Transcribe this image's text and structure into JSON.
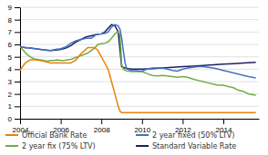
{
  "chart_data": {
    "type": "line",
    "xlim": [
      2004.0,
      2015.75
    ],
    "ylim": [
      0,
      9
    ],
    "xticks": [
      2004,
      2006,
      2008,
      2010,
      2012,
      2014
    ],
    "yticks": [
      0,
      1,
      2,
      3,
      4,
      5,
      6,
      7,
      8,
      9
    ],
    "grid": true,
    "legend": "bottom",
    "series": [
      {
        "name": "Official Bank Rate",
        "color": "#e8820c",
        "x": [
          2004.0,
          2004.25,
          2004.5,
          2004.75,
          2005.0,
          2005.25,
          2005.5,
          2005.75,
          2006.0,
          2006.25,
          2006.5,
          2006.75,
          2007.0,
          2007.17,
          2007.33,
          2007.5,
          2007.67,
          2007.83,
          2008.0,
          2008.17,
          2008.33,
          2008.5,
          2008.67,
          2008.83,
          2008.92,
          2009.0,
          2009.08,
          2009.17,
          2009.33,
          2009.5,
          2010.0,
          2011.0,
          2012.0,
          2013.0,
          2014.0,
          2015.0,
          2015.6
        ],
        "values": [
          3.9,
          4.5,
          4.75,
          4.75,
          4.7,
          4.6,
          4.5,
          4.5,
          4.5,
          4.5,
          4.5,
          4.75,
          5.25,
          5.5,
          5.75,
          5.75,
          5.75,
          5.5,
          5.0,
          4.5,
          4.0,
          3.0,
          2.0,
          1.0,
          0.6,
          0.5,
          0.5,
          0.5,
          0.5,
          0.5,
          0.5,
          0.5,
          0.5,
          0.5,
          0.5,
          0.5,
          0.5
        ]
      },
      {
        "name": "2 year fixed (50% LTV)",
        "color": "#4472c4",
        "x": [
          2004.0,
          2004.25,
          2004.5,
          2004.75,
          2005.0,
          2005.25,
          2005.5,
          2005.75,
          2006.0,
          2006.25,
          2006.5,
          2006.75,
          2007.0,
          2007.25,
          2007.5,
          2007.75,
          2008.0,
          2008.17,
          2008.33,
          2008.5,
          2008.67,
          2008.83,
          2008.92,
          2009.0,
          2009.08,
          2009.17,
          2009.25,
          2009.5,
          2010.0,
          2010.25,
          2010.5,
          2011.0,
          2011.25,
          2011.5,
          2011.75,
          2012.0,
          2012.25,
          2012.5,
          2012.75,
          2013.0,
          2013.25,
          2013.5,
          2013.75,
          2014.0,
          2014.25,
          2014.5,
          2014.75,
          2015.0,
          2015.25,
          2015.6
        ],
        "values": [
          5.8,
          5.75,
          5.7,
          5.65,
          5.6,
          5.55,
          5.5,
          5.6,
          5.65,
          5.8,
          6.1,
          6.3,
          6.4,
          6.5,
          6.5,
          6.8,
          6.85,
          6.9,
          7.0,
          7.4,
          7.6,
          7.5,
          7.2,
          6.5,
          5.5,
          4.5,
          4.0,
          3.9,
          3.85,
          4.0,
          4.1,
          4.1,
          4.0,
          3.9,
          3.85,
          4.0,
          4.1,
          4.15,
          4.2,
          4.2,
          4.15,
          4.1,
          4.0,
          3.9,
          3.8,
          3.7,
          3.6,
          3.5,
          3.4,
          3.3
        ]
      },
      {
        "name": "2 year fix (75% LTV)",
        "color": "#70ad47",
        "x": [
          2004.0,
          2004.17,
          2004.33,
          2004.5,
          2004.67,
          2004.83,
          2005.0,
          2005.17,
          2005.33,
          2005.5,
          2005.67,
          2005.83,
          2006.0,
          2006.17,
          2006.33,
          2006.5,
          2006.67,
          2006.83,
          2007.0,
          2007.17,
          2007.33,
          2007.5,
          2007.67,
          2007.83,
          2008.0,
          2008.17,
          2008.33,
          2008.5,
          2008.67,
          2008.83,
          2008.92,
          2009.0,
          2009.08,
          2009.17,
          2009.25,
          2009.5,
          2010.0,
          2010.25,
          2010.5,
          2010.75,
          2011.0,
          2011.25,
          2011.5,
          2011.75,
          2012.0,
          2012.25,
          2012.5,
          2012.75,
          2013.0,
          2013.25,
          2013.5,
          2013.75,
          2014.0,
          2014.25,
          2014.5,
          2014.75,
          2015.0,
          2015.25,
          2015.6
        ],
        "values": [
          5.8,
          5.5,
          5.2,
          5.0,
          4.85,
          4.8,
          4.75,
          4.7,
          4.65,
          4.7,
          4.7,
          4.75,
          4.7,
          4.7,
          4.75,
          4.8,
          4.9,
          5.0,
          5.1,
          5.2,
          5.3,
          5.5,
          5.7,
          6.0,
          6.05,
          6.1,
          6.2,
          6.5,
          6.85,
          7.0,
          6.8,
          4.4,
          4.0,
          3.9,
          3.85,
          3.8,
          3.8,
          3.65,
          3.5,
          3.45,
          3.5,
          3.45,
          3.4,
          3.35,
          3.4,
          3.35,
          3.2,
          3.1,
          3.0,
          2.9,
          2.8,
          2.7,
          2.7,
          2.6,
          2.5,
          2.3,
          2.2,
          2.0,
          1.9
        ]
      },
      {
        "name": "Standard Variable Rate",
        "color": "#1f2060",
        "x": [
          2004.0,
          2004.25,
          2004.5,
          2004.75,
          2005.0,
          2005.25,
          2005.5,
          2005.75,
          2006.0,
          2006.25,
          2006.5,
          2006.75,
          2007.0,
          2007.25,
          2007.5,
          2007.75,
          2008.0,
          2008.17,
          2008.33,
          2008.5,
          2008.67,
          2008.83,
          2009.0,
          2009.17,
          2009.33,
          2009.5,
          2010.0,
          2010.5,
          2011.0,
          2011.5,
          2012.0,
          2012.5,
          2013.0,
          2013.5,
          2014.0,
          2014.5,
          2015.0,
          2015.6
        ],
        "values": [
          5.8,
          5.75,
          5.7,
          5.65,
          5.6,
          5.55,
          5.5,
          5.55,
          5.6,
          5.7,
          5.9,
          6.2,
          6.4,
          6.6,
          6.7,
          6.8,
          6.85,
          7.0,
          7.3,
          7.6,
          7.5,
          7.0,
          4.2,
          4.1,
          4.05,
          4.0,
          4.0,
          4.05,
          4.1,
          4.15,
          4.2,
          4.25,
          4.3,
          4.35,
          4.4,
          4.45,
          4.5,
          4.55
        ]
      }
    ]
  }
}
